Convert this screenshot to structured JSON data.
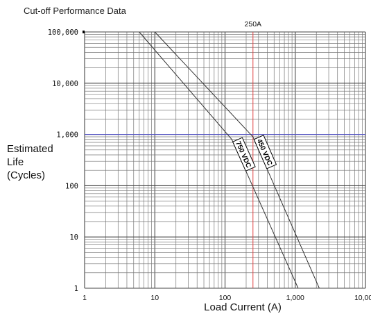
{
  "chart_data": {
    "type": "line",
    "title": "Cut-off Performance Data",
    "xlabel": "Load Current (A)",
    "ylabel_lines": [
      "Estimated",
      "Life",
      "(Cycles)"
    ],
    "x_scale": "log",
    "y_scale": "log",
    "xlim": [
      1,
      10000
    ],
    "ylim": [
      1,
      100000
    ],
    "x_ticks": [
      {
        "value": 1,
        "label": "1"
      },
      {
        "value": 10,
        "label": "10"
      },
      {
        "value": 100,
        "label": "100"
      },
      {
        "value": 1000,
        "label": "1,000"
      },
      {
        "value": 10000,
        "label": "10,000"
      }
    ],
    "y_ticks": [
      {
        "value": 1,
        "label": "1"
      },
      {
        "value": 10,
        "label": "10"
      },
      {
        "value": 100,
        "label": "100"
      },
      {
        "value": 1000,
        "label": "1,000"
      },
      {
        "value": 10000,
        "label": "10,000"
      },
      {
        "value": 100000,
        "label": "100,000"
      }
    ],
    "grid": true,
    "reference_lines": [
      {
        "axis": "x",
        "value": 250,
        "label": "250A",
        "color": "#e04040"
      },
      {
        "axis": "y",
        "value": 1000,
        "color": "#5b5bd6"
      }
    ],
    "series": [
      {
        "name": "450 VDC",
        "color": "#333333",
        "x": [
          10,
          250,
          2200
        ],
        "y": [
          100000,
          900,
          1
        ]
      },
      {
        "name": "750 VDC",
        "color": "#333333",
        "x": [
          6,
          125,
          1100
        ],
        "y": [
          100000,
          800,
          1
        ]
      }
    ]
  }
}
